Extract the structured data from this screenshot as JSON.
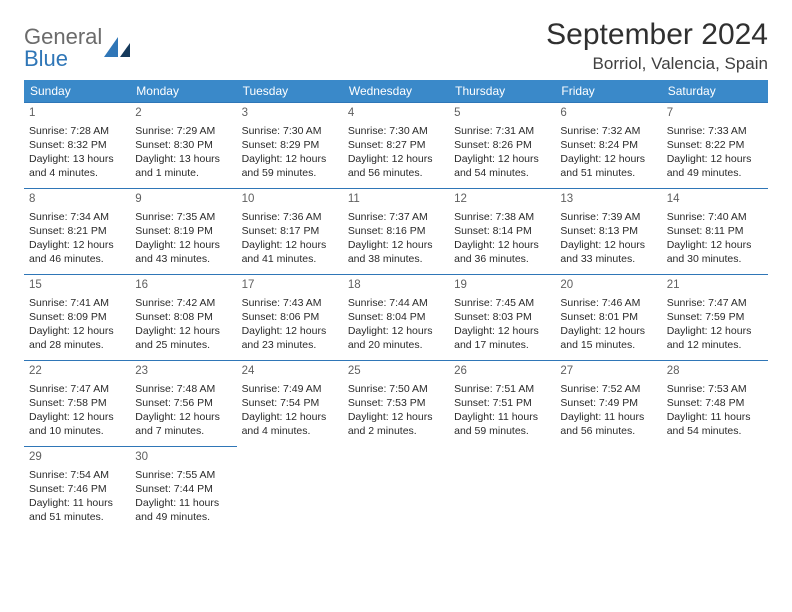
{
  "brand": {
    "line1": "General",
    "line2": "Blue"
  },
  "colors": {
    "header_bg": "#3a89c9",
    "border": "#2f76b7",
    "brand_gray": "#6b6b6b",
    "brand_blue": "#2f76b7"
  },
  "title": "September 2024",
  "location": "Borriol, Valencia, Spain",
  "weekdays": [
    "Sunday",
    "Monday",
    "Tuesday",
    "Wednesday",
    "Thursday",
    "Friday",
    "Saturday"
  ],
  "weeks": [
    [
      {
        "n": "1",
        "sr": "Sunrise: 7:28 AM",
        "ss": "Sunset: 8:32 PM",
        "dl1": "Daylight: 13 hours",
        "dl2": "and 4 minutes."
      },
      {
        "n": "2",
        "sr": "Sunrise: 7:29 AM",
        "ss": "Sunset: 8:30 PM",
        "dl1": "Daylight: 13 hours",
        "dl2": "and 1 minute."
      },
      {
        "n": "3",
        "sr": "Sunrise: 7:30 AM",
        "ss": "Sunset: 8:29 PM",
        "dl1": "Daylight: 12 hours",
        "dl2": "and 59 minutes."
      },
      {
        "n": "4",
        "sr": "Sunrise: 7:30 AM",
        "ss": "Sunset: 8:27 PM",
        "dl1": "Daylight: 12 hours",
        "dl2": "and 56 minutes."
      },
      {
        "n": "5",
        "sr": "Sunrise: 7:31 AM",
        "ss": "Sunset: 8:26 PM",
        "dl1": "Daylight: 12 hours",
        "dl2": "and 54 minutes."
      },
      {
        "n": "6",
        "sr": "Sunrise: 7:32 AM",
        "ss": "Sunset: 8:24 PM",
        "dl1": "Daylight: 12 hours",
        "dl2": "and 51 minutes."
      },
      {
        "n": "7",
        "sr": "Sunrise: 7:33 AM",
        "ss": "Sunset: 8:22 PM",
        "dl1": "Daylight: 12 hours",
        "dl2": "and 49 minutes."
      }
    ],
    [
      {
        "n": "8",
        "sr": "Sunrise: 7:34 AM",
        "ss": "Sunset: 8:21 PM",
        "dl1": "Daylight: 12 hours",
        "dl2": "and 46 minutes."
      },
      {
        "n": "9",
        "sr": "Sunrise: 7:35 AM",
        "ss": "Sunset: 8:19 PM",
        "dl1": "Daylight: 12 hours",
        "dl2": "and 43 minutes."
      },
      {
        "n": "10",
        "sr": "Sunrise: 7:36 AM",
        "ss": "Sunset: 8:17 PM",
        "dl1": "Daylight: 12 hours",
        "dl2": "and 41 minutes."
      },
      {
        "n": "11",
        "sr": "Sunrise: 7:37 AM",
        "ss": "Sunset: 8:16 PM",
        "dl1": "Daylight: 12 hours",
        "dl2": "and 38 minutes."
      },
      {
        "n": "12",
        "sr": "Sunrise: 7:38 AM",
        "ss": "Sunset: 8:14 PM",
        "dl1": "Daylight: 12 hours",
        "dl2": "and 36 minutes."
      },
      {
        "n": "13",
        "sr": "Sunrise: 7:39 AM",
        "ss": "Sunset: 8:13 PM",
        "dl1": "Daylight: 12 hours",
        "dl2": "and 33 minutes."
      },
      {
        "n": "14",
        "sr": "Sunrise: 7:40 AM",
        "ss": "Sunset: 8:11 PM",
        "dl1": "Daylight: 12 hours",
        "dl2": "and 30 minutes."
      }
    ],
    [
      {
        "n": "15",
        "sr": "Sunrise: 7:41 AM",
        "ss": "Sunset: 8:09 PM",
        "dl1": "Daylight: 12 hours",
        "dl2": "and 28 minutes."
      },
      {
        "n": "16",
        "sr": "Sunrise: 7:42 AM",
        "ss": "Sunset: 8:08 PM",
        "dl1": "Daylight: 12 hours",
        "dl2": "and 25 minutes."
      },
      {
        "n": "17",
        "sr": "Sunrise: 7:43 AM",
        "ss": "Sunset: 8:06 PM",
        "dl1": "Daylight: 12 hours",
        "dl2": "and 23 minutes."
      },
      {
        "n": "18",
        "sr": "Sunrise: 7:44 AM",
        "ss": "Sunset: 8:04 PM",
        "dl1": "Daylight: 12 hours",
        "dl2": "and 20 minutes."
      },
      {
        "n": "19",
        "sr": "Sunrise: 7:45 AM",
        "ss": "Sunset: 8:03 PM",
        "dl1": "Daylight: 12 hours",
        "dl2": "and 17 minutes."
      },
      {
        "n": "20",
        "sr": "Sunrise: 7:46 AM",
        "ss": "Sunset: 8:01 PM",
        "dl1": "Daylight: 12 hours",
        "dl2": "and 15 minutes."
      },
      {
        "n": "21",
        "sr": "Sunrise: 7:47 AM",
        "ss": "Sunset: 7:59 PM",
        "dl1": "Daylight: 12 hours",
        "dl2": "and 12 minutes."
      }
    ],
    [
      {
        "n": "22",
        "sr": "Sunrise: 7:47 AM",
        "ss": "Sunset: 7:58 PM",
        "dl1": "Daylight: 12 hours",
        "dl2": "and 10 minutes."
      },
      {
        "n": "23",
        "sr": "Sunrise: 7:48 AM",
        "ss": "Sunset: 7:56 PM",
        "dl1": "Daylight: 12 hours",
        "dl2": "and 7 minutes."
      },
      {
        "n": "24",
        "sr": "Sunrise: 7:49 AM",
        "ss": "Sunset: 7:54 PM",
        "dl1": "Daylight: 12 hours",
        "dl2": "and 4 minutes."
      },
      {
        "n": "25",
        "sr": "Sunrise: 7:50 AM",
        "ss": "Sunset: 7:53 PM",
        "dl1": "Daylight: 12 hours",
        "dl2": "and 2 minutes."
      },
      {
        "n": "26",
        "sr": "Sunrise: 7:51 AM",
        "ss": "Sunset: 7:51 PM",
        "dl1": "Daylight: 11 hours",
        "dl2": "and 59 minutes."
      },
      {
        "n": "27",
        "sr": "Sunrise: 7:52 AM",
        "ss": "Sunset: 7:49 PM",
        "dl1": "Daylight: 11 hours",
        "dl2": "and 56 minutes."
      },
      {
        "n": "28",
        "sr": "Sunrise: 7:53 AM",
        "ss": "Sunset: 7:48 PM",
        "dl1": "Daylight: 11 hours",
        "dl2": "and 54 minutes."
      }
    ],
    [
      {
        "n": "29",
        "sr": "Sunrise: 7:54 AM",
        "ss": "Sunset: 7:46 PM",
        "dl1": "Daylight: 11 hours",
        "dl2": "and 51 minutes."
      },
      {
        "n": "30",
        "sr": "Sunrise: 7:55 AM",
        "ss": "Sunset: 7:44 PM",
        "dl1": "Daylight: 11 hours",
        "dl2": "and 49 minutes."
      },
      null,
      null,
      null,
      null,
      null
    ]
  ]
}
